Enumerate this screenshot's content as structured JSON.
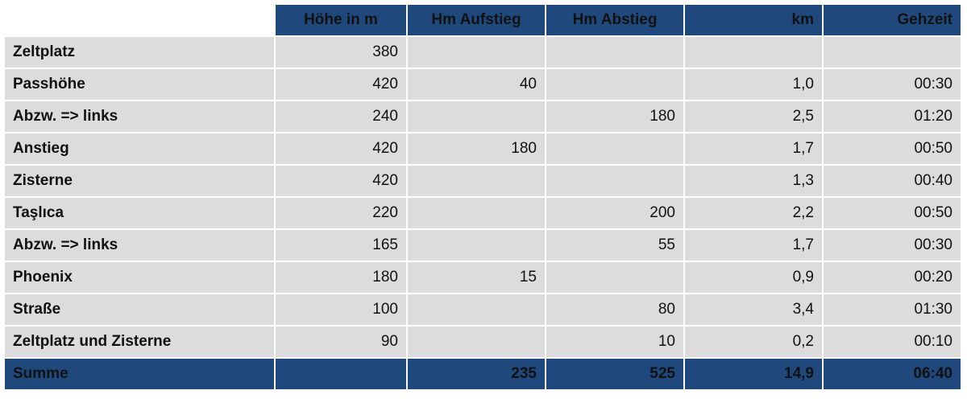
{
  "header": {
    "col0": "",
    "col1": "Höhe in m",
    "col2": "Hm Aufstieg",
    "col3": "Hm Abstieg",
    "col4": "km",
    "col5": "Gehzeit"
  },
  "rows": [
    {
      "name": "Zeltplatz",
      "hoehe": "380",
      "aufstieg": "",
      "abstieg": "",
      "km": "",
      "zeit": ""
    },
    {
      "name": "Passhöhe",
      "hoehe": "420",
      "aufstieg": "40",
      "abstieg": "",
      "km": "1,0",
      "zeit": "00:30"
    },
    {
      "name": "Abzw. => links",
      "hoehe": "240",
      "aufstieg": "",
      "abstieg": "180",
      "km": "2,5",
      "zeit": "01:20"
    },
    {
      "name": "Anstieg",
      "hoehe": "420",
      "aufstieg": "180",
      "abstieg": "",
      "km": "1,7",
      "zeit": "00:50"
    },
    {
      "name": "Zisterne",
      "hoehe": "420",
      "aufstieg": "",
      "abstieg": "",
      "km": "1,3",
      "zeit": "00:40"
    },
    {
      "name": "Taşlıca",
      "hoehe": "220",
      "aufstieg": "",
      "abstieg": "200",
      "km": "2,2",
      "zeit": "00:50"
    },
    {
      "name": "Abzw. => links",
      "hoehe": "165",
      "aufstieg": "",
      "abstieg": "55",
      "km": "1,7",
      "zeit": "00:30"
    },
    {
      "name": "Phoenix",
      "hoehe": "180",
      "aufstieg": "15",
      "abstieg": "",
      "km": "0,9",
      "zeit": "00:20"
    },
    {
      "name": "Straße",
      "hoehe": "100",
      "aufstieg": "",
      "abstieg": "80",
      "km": "3,4",
      "zeit": "01:30"
    },
    {
      "name": "Zeltplatz und Zisterne",
      "hoehe": "90",
      "aufstieg": "",
      "abstieg": "10",
      "km": "0,2",
      "zeit": "00:10"
    }
  ],
  "footer": {
    "name": "Summe",
    "hoehe": "",
    "aufstieg": "235",
    "abstieg": "525",
    "km": "14,9",
    "zeit": "06:40"
  },
  "colors": {
    "header_bg": "#1f497d",
    "row_bg": "#dcdcdc",
    "header_text": "#ffffff"
  }
}
